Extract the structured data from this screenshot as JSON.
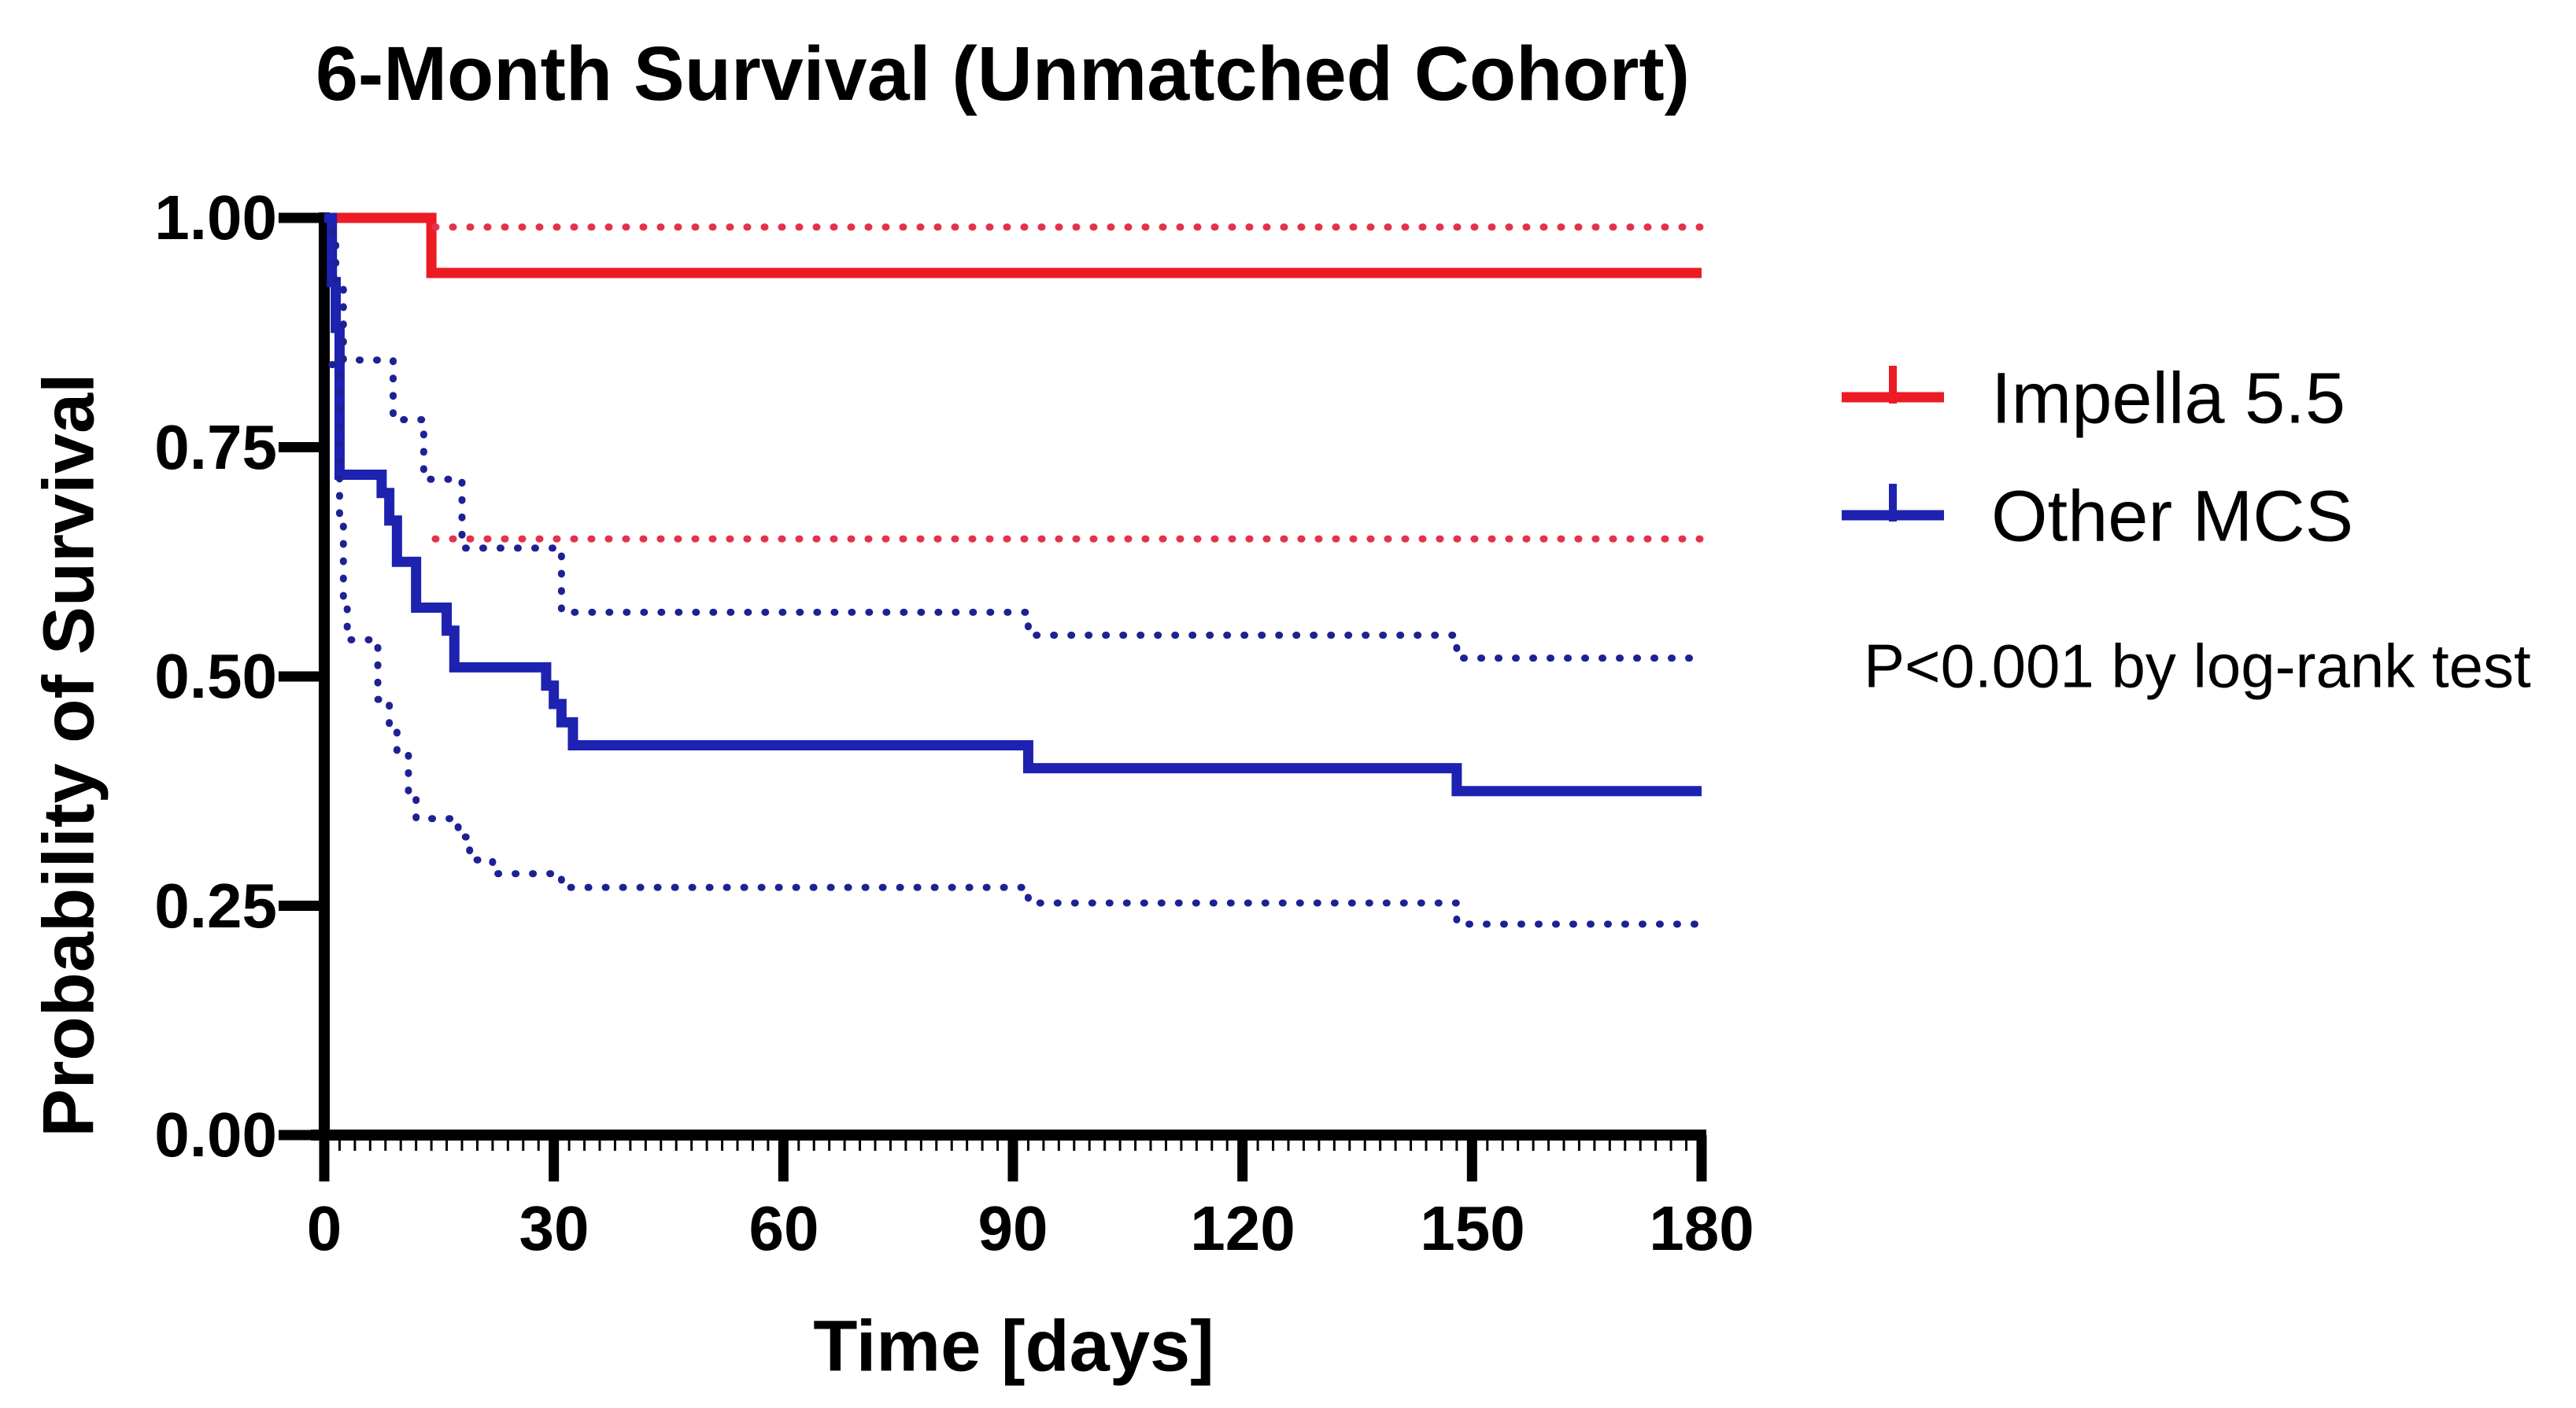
{
  "chart_data": {
    "type": "line",
    "subtype": "kaplan-meier-step",
    "title": "6-Month Survival (Unmatched Cohort)",
    "xlabel": "Time [days]",
    "ylabel": "Probability of Survival",
    "xlim": [
      0,
      180
    ],
    "ylim": [
      0.0,
      1.0
    ],
    "grid": false,
    "legend_position": "right",
    "xticks": [
      0,
      30,
      60,
      90,
      120,
      150,
      180
    ],
    "xtick_labels": [
      "0",
      "30",
      "60",
      "90",
      "120",
      "150",
      "180"
    ],
    "yticks": [
      1.0,
      0.75,
      0.5,
      0.25,
      0.0
    ],
    "ytick_labels": [
      "1.00",
      "0.75",
      "0.50",
      "0.25",
      "0.00"
    ],
    "annotation": "P<0.001 by log-rank test",
    "legend": [
      {
        "label": "Impella 5.5",
        "color": "#EC1B24"
      },
      {
        "label": "Other MCS",
        "color": "#1E22B0"
      }
    ],
    "series": [
      {
        "name": "Impella 5.5",
        "role": "estimate",
        "line": "solid",
        "color": "#EC1B24",
        "end": 180,
        "steps": [
          [
            0,
            1.0
          ],
          [
            14,
            0.94
          ]
        ]
      },
      {
        "name": "Impella 5.5 upper 95% CI",
        "role": "ci",
        "line": "dotted",
        "color": "#E4324B",
        "end": 180,
        "steps": [
          [
            14.5,
            0.99
          ]
        ]
      },
      {
        "name": "Impella 5.5 lower 95% CI",
        "role": "ci",
        "line": "dotted",
        "color": "#E4324B",
        "end": 180,
        "steps": [
          [
            14.5,
            0.65
          ]
        ]
      },
      {
        "name": "Other MCS",
        "role": "estimate",
        "line": "solid",
        "color": "#1E22B0",
        "end": 180,
        "steps": [
          [
            0,
            1.0
          ],
          [
            1,
            0.93
          ],
          [
            1.5,
            0.88
          ],
          [
            2,
            0.72
          ],
          [
            7.5,
            0.7
          ],
          [
            8.5,
            0.67
          ],
          [
            9.5,
            0.625
          ],
          [
            12,
            0.575
          ],
          [
            16,
            0.55
          ],
          [
            17,
            0.51
          ],
          [
            29,
            0.49
          ],
          [
            30,
            0.47
          ],
          [
            31,
            0.45
          ],
          [
            32.5,
            0.425
          ],
          [
            92,
            0.4
          ],
          [
            148,
            0.375
          ]
        ]
      },
      {
        "name": "Other MCS upper 95% CI",
        "role": "ci",
        "line": "dotted",
        "color": "#1E2194",
        "end": 180,
        "steps": [
          [
            1,
            0.985
          ],
          [
            1.5,
            0.93
          ],
          [
            2.5,
            0.845
          ],
          [
            9,
            0.78
          ],
          [
            13,
            0.715
          ],
          [
            18,
            0.64
          ],
          [
            31,
            0.57
          ],
          [
            92,
            0.545
          ],
          [
            148,
            0.52
          ]
        ]
      },
      {
        "name": "Other MCS lower 95% CI",
        "role": "ci",
        "line": "dotted",
        "color": "#1E2194",
        "end": 180,
        "steps": [
          [
            1,
            0.84
          ],
          [
            2,
            0.665
          ],
          [
            2.5,
            0.575
          ],
          [
            3,
            0.54
          ],
          [
            7,
            0.475
          ],
          [
            8.5,
            0.44
          ],
          [
            9.5,
            0.415
          ],
          [
            11,
            0.37
          ],
          [
            12,
            0.345
          ],
          [
            17.5,
            0.325
          ],
          [
            19,
            0.3
          ],
          [
            22,
            0.285
          ],
          [
            31,
            0.27
          ],
          [
            92,
            0.253
          ],
          [
            148,
            0.23
          ]
        ]
      }
    ]
  }
}
